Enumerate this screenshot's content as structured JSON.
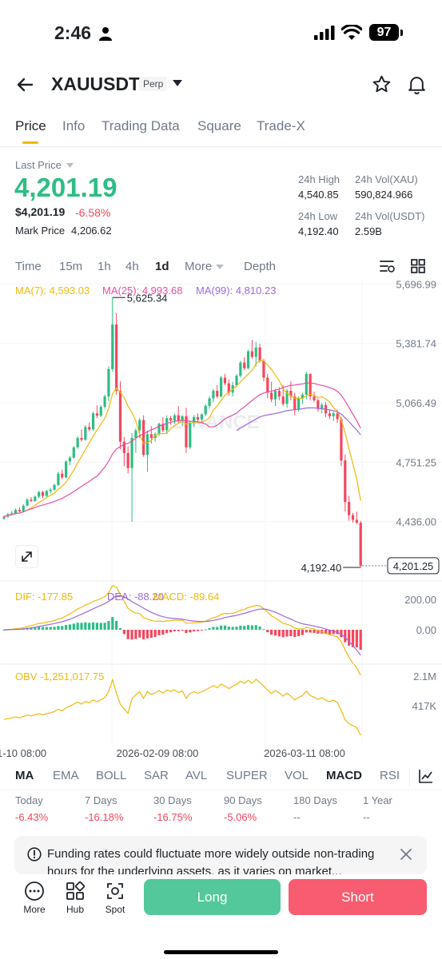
{
  "status_bar": {
    "time": "2:46",
    "battery": "97"
  },
  "header": {
    "symbol": "XAUUSDT",
    "badge": "Perp"
  },
  "tabs": [
    {
      "label": "Price"
    },
    {
      "label": "Info"
    },
    {
      "label": "Trading Data"
    },
    {
      "label": "Square"
    },
    {
      "label": "Trade-X"
    }
  ],
  "price_panel": {
    "last_price_label": "Last Price",
    "last_price": "4,201.19",
    "usd_price": "$4,201.19",
    "change_pct": "-6.58%",
    "mark_price_label": "Mark Price",
    "mark_price": "4,206.62",
    "stats": {
      "high_label": "24h High",
      "high": "4,540.85",
      "vol_xau_label": "24h Vol(XAU)",
      "vol_xau": "590,824.966",
      "low_label": "24h Low",
      "low": "4,192.40",
      "vol_usdt_label": "24h Vol(USDT)",
      "vol_usdt": "2.59B"
    }
  },
  "timeframes": {
    "time": "Time",
    "m15": "15m",
    "h1": "1h",
    "h4": "4h",
    "d1": "1d",
    "more": "More",
    "depth": "Depth"
  },
  "ma_legend": {
    "ma7": "MA(7): 4,593.03",
    "ma25": "MA(25): 4,993.68",
    "ma99": "MA(99): 4,810.23"
  },
  "colors": {
    "up": "#2ebd85",
    "down": "#f6465d",
    "ma7": "#f0b90b",
    "ma25": "#e84ea5",
    "ma99": "#9c6ade",
    "accent": "#f0b90b"
  },
  "chart_data": {
    "type": "candlestick",
    "y_axis_labels": [
      "5,696.99",
      "5,381.74",
      "5,066.49",
      "4,751.25",
      "4,436.00"
    ],
    "ylim": [
      4150,
      5720
    ],
    "high_marker": "5,625.34",
    "low_marker": "4,192.40",
    "current_price": "4,201.25",
    "x_axis_labels": [
      "1-10 08:00",
      "2026-02-09 08:00",
      "2026-03-11 08:00"
    ],
    "watermark": "BINANCE",
    "candles": [
      [
        4452,
        4468,
        4445,
        4462
      ],
      [
        4462,
        4482,
        4455,
        4475
      ],
      [
        4475,
        4492,
        4468,
        4480
      ],
      [
        4480,
        4505,
        4474,
        4498
      ],
      [
        4498,
        4512,
        4485,
        4490
      ],
      [
        4490,
        4528,
        4486,
        4520
      ],
      [
        4520,
        4560,
        4515,
        4552
      ],
      [
        4552,
        4566,
        4540,
        4545
      ],
      [
        4545,
        4574,
        4540,
        4568
      ],
      [
        4568,
        4600,
        4560,
        4592
      ],
      [
        4592,
        4600,
        4560,
        4572
      ],
      [
        4572,
        4604,
        4566,
        4598
      ],
      [
        4598,
        4615,
        4585,
        4605
      ],
      [
        4605,
        4638,
        4598,
        4630
      ],
      [
        4630,
        4700,
        4625,
        4690
      ],
      [
        4690,
        4712,
        4662,
        4670
      ],
      [
        4670,
        4760,
        4665,
        4755
      ],
      [
        4755,
        4785,
        4735,
        4775
      ],
      [
        4775,
        4838,
        4770,
        4830
      ],
      [
        4830,
        4890,
        4822,
        4880
      ],
      [
        4880,
        4925,
        4860,
        4870
      ],
      [
        4870,
        4948,
        4865,
        4938
      ],
      [
        4938,
        4962,
        4915,
        4925
      ],
      [
        4925,
        5020,
        4918,
        5010
      ],
      [
        5010,
        5052,
        4985,
        4998
      ],
      [
        4998,
        5055,
        4990,
        5045
      ],
      [
        5045,
        5110,
        5035,
        5100
      ],
      [
        5100,
        5260,
        5075,
        5245
      ],
      [
        5245,
        5625,
        5232,
        5482
      ],
      [
        5482,
        5542,
        5110,
        5130
      ],
      [
        5130,
        5180,
        4820,
        4860
      ],
      [
        4860,
        4885,
        4730,
        4800
      ],
      [
        4800,
        4835,
        4692,
        4720
      ],
      [
        4720,
        4905,
        4435,
        4880
      ],
      [
        4880,
        4930,
        4800,
        4920
      ],
      [
        4920,
        4985,
        4880,
        4975
      ],
      [
        4975,
        5000,
        4780,
        4790
      ],
      [
        4790,
        4920,
        4700,
        4900
      ],
      [
        4900,
        4942,
        4850,
        4880
      ],
      [
        4880,
        4910,
        4860,
        4900
      ],
      [
        4900,
        4962,
        4890,
        4955
      ],
      [
        4955,
        4990,
        4910,
        4920
      ],
      [
        4920,
        5000,
        4900,
        4985
      ],
      [
        4985,
        4998,
        4950,
        4972
      ],
      [
        4972,
        5010,
        4955,
        5000
      ],
      [
        5000,
        5048,
        4960,
        4970
      ],
      [
        4970,
        5000,
        4945,
        4995
      ],
      [
        4995,
        5040,
        4800,
        4830
      ],
      [
        4830,
        4972,
        4820,
        4962
      ],
      [
        4962,
        5000,
        4940,
        4990
      ],
      [
        4990,
        5010,
        4960,
        4978
      ],
      [
        4978,
        5010,
        4962,
        5005
      ],
      [
        5005,
        5060,
        4995,
        5050
      ],
      [
        5050,
        5100,
        5035,
        5090
      ],
      [
        5090,
        5140,
        5070,
        5130
      ],
      [
        5130,
        5160,
        5090,
        5100
      ],
      [
        5100,
        5210,
        5095,
        5200
      ],
      [
        5200,
        5220,
        5160,
        5170
      ],
      [
        5170,
        5190,
        5105,
        5120
      ],
      [
        5120,
        5178,
        5100,
        5160
      ],
      [
        5160,
        5220,
        5150,
        5210
      ],
      [
        5210,
        5290,
        5200,
        5280
      ],
      [
        5280,
        5308,
        5240,
        5250
      ],
      [
        5250,
        5348,
        5245,
        5340
      ],
      [
        5340,
        5400,
        5300,
        5310
      ],
      [
        5310,
        5390,
        5260,
        5360
      ],
      [
        5360,
        5380,
        5280,
        5290
      ],
      [
        5290,
        5300,
        5180,
        5200
      ],
      [
        5200,
        5220,
        5090,
        5120
      ],
      [
        5120,
        5178,
        5070,
        5085
      ],
      [
        5085,
        5140,
        5050,
        5130
      ],
      [
        5130,
        5150,
        5080,
        5100
      ],
      [
        5100,
        5160,
        5050,
        5060
      ],
      [
        5060,
        5140,
        5040,
        5130
      ],
      [
        5130,
        5180,
        5080,
        5100
      ],
      [
        5100,
        5120,
        5000,
        5030
      ],
      [
        5030,
        5100,
        5020,
        5090
      ],
      [
        5090,
        5120,
        5060,
        5110
      ],
      [
        5110,
        5230,
        5085,
        5220
      ],
      [
        5220,
        5222,
        5080,
        5100
      ],
      [
        5100,
        5125,
        5070,
        5080
      ],
      [
        5080,
        5090,
        5020,
        5035
      ],
      [
        5035,
        5065,
        5010,
        5055
      ],
      [
        5055,
        5070,
        4990,
        5010
      ],
      [
        5010,
        5032,
        4980,
        4995
      ],
      [
        4995,
        5020,
        4970,
        5010
      ],
      [
        5010,
        5030,
        4960,
        4980
      ],
      [
        4980,
        4990,
        4730,
        4760
      ],
      [
        4760,
        4792,
        4490,
        4540
      ],
      [
        4540,
        4572,
        4440,
        4470
      ],
      [
        4470,
        4482,
        4430,
        4445
      ],
      [
        4445,
        4488,
        4420,
        4430
      ],
      [
        4430,
        4440,
        4192,
        4201
      ]
    ]
  },
  "macd": {
    "dif": "DIF: -177.85",
    "dea": "DEA: -88.20",
    "macd": "MACD: -89.64",
    "levels": [
      "200.00",
      "0.00"
    ]
  },
  "obv": {
    "label": "OBV -1,251,017.75",
    "levels": [
      "2.1M",
      "417K"
    ]
  },
  "indicator_tabs": [
    "MA",
    "EMA",
    "BOLL",
    "SAR",
    "AVL",
    "SUPER",
    "VOL",
    "MACD",
    "RSI"
  ],
  "performance": [
    {
      "label": "Today",
      "value": "-6.43%"
    },
    {
      "label": "7 Days",
      "value": "-16.18%"
    },
    {
      "label": "30 Days",
      "value": "-16.75%"
    },
    {
      "label": "90 Days",
      "value": "-5.06%"
    },
    {
      "label": "180 Days",
      "value": "--"
    },
    {
      "label": "1 Year",
      "value": "--"
    }
  ],
  "notice": {
    "text": "Funding rates could fluctuate more widely outside non-trading",
    "text2": "hours for the underlying assets, as it varies on market..."
  },
  "bottom_nav": {
    "more": "More",
    "hub": "Hub",
    "spot": "Spot",
    "long": "Long",
    "short": "Short"
  }
}
